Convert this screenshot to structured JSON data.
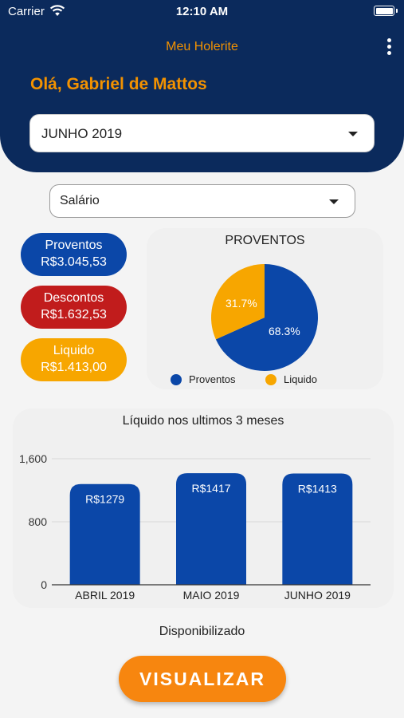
{
  "status_bar": {
    "carrier": "Carrier",
    "time": "12:10 AM"
  },
  "header": {
    "app_title": "Meu Holerite",
    "greeting": "Olá, Gabriel de Mattos"
  },
  "month_select": {
    "value": "JUNHO 2019"
  },
  "type_select": {
    "value": "Salário"
  },
  "summary": {
    "proventos": {
      "label": "Proventos",
      "value": "R$3.045,53"
    },
    "descontos": {
      "label": "Descontos",
      "value": "R$1.632,53"
    },
    "liquido": {
      "label": "Liquido",
      "value": "R$1.413,00"
    }
  },
  "colors": {
    "navy": "#0b2a5c",
    "orange": "#f39200",
    "blue": "#0b47a8",
    "red": "#c11c1c",
    "yellow": "#f7a600"
  },
  "chart_data": [
    {
      "type": "pie",
      "title": "PROVENTOS",
      "slices": [
        {
          "name": "Proventos",
          "value": 68.3,
          "label": "68.3%",
          "color": "#0b47a8"
        },
        {
          "name": "Liquido",
          "value": 31.7,
          "label": "31.7%",
          "color": "#f7a600"
        }
      ],
      "legend": "bottom"
    },
    {
      "type": "bar",
      "title": "Líquido nos ultimos 3 meses",
      "categories": [
        "ABRIL 2019",
        "MAIO 2019",
        "JUNHO 2019"
      ],
      "values": [
        1279,
        1417,
        1413
      ],
      "data_labels": [
        "R$1279",
        "R$1417",
        "R$1413"
      ],
      "yticks": [
        "0",
        "800",
        "1,600"
      ],
      "ytick_values": [
        0,
        800,
        1600
      ],
      "ylim": [
        0,
        1600
      ],
      "grid": true,
      "color": "#0b47a8"
    }
  ],
  "footer": {
    "status_text": "Disponibilizado",
    "button_label": "VISUALIZAR"
  }
}
